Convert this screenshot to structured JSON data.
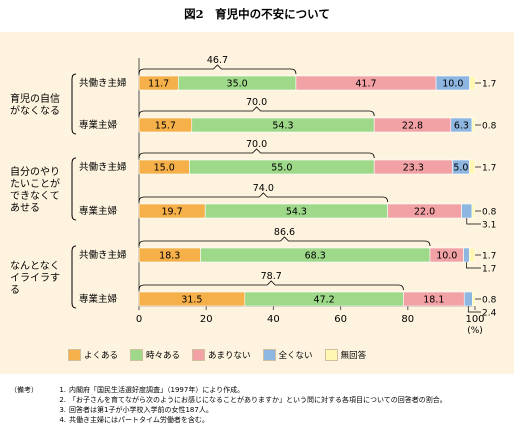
{
  "title": "図2　育児中の不安について",
  "chart_data": {
    "type": "bar",
    "orientation": "horizontal",
    "stacked": true,
    "xlim": [
      0,
      100
    ],
    "x_ticks": [
      0,
      20,
      40,
      60,
      80,
      100
    ],
    "x_unit": "(%)",
    "series_names": [
      "よくある",
      "時々ある",
      "あまりない",
      "全くない",
      "無回答"
    ],
    "series_colors": [
      "#f6b04a",
      "#9ed98a",
      "#f2a1a4",
      "#8db6e0",
      "#fff7b2"
    ],
    "groups": [
      {
        "label_lines": [
          "育児の自信",
          "がなくなる"
        ],
        "rows": [
          {
            "label": "共働き主婦",
            "values": [
              11.7,
              35.0,
              41.7,
              10.0,
              1.7
            ],
            "labels": [
              "11.7",
              "35.0",
              "41.7",
              "10.0",
              "1.7"
            ],
            "bracket_value": "46.7",
            "bracket_end": 46.7
          },
          {
            "label": "専業主婦",
            "values": [
              15.7,
              54.3,
              22.8,
              6.3,
              0.8
            ],
            "labels": [
              "15.7",
              "54.3",
              "22.8",
              "6.3",
              "0.8"
            ],
            "bracket_value": "70.0",
            "bracket_end": 70.0
          }
        ]
      },
      {
        "label_lines": [
          "自分のやり",
          "たいことが",
          "できなくて",
          "あせる"
        ],
        "rows": [
          {
            "label": "共働き主婦",
            "values": [
              15.0,
              55.0,
              23.3,
              5.0,
              1.7
            ],
            "labels": [
              "15.0",
              "55.0",
              "23.3",
              "5.0",
              "1.7"
            ],
            "bracket_value": "70.0",
            "bracket_end": 70.0
          },
          {
            "label": "専業主婦",
            "values": [
              19.7,
              54.3,
              22.0,
              3.1,
              0.8
            ],
            "labels": [
              "19.7",
              "54.3",
              "22.0",
              "3.1",
              "0.8"
            ],
            "bracket_value": "74.0",
            "bracket_end": 74.0
          }
        ]
      },
      {
        "label_lines": [
          "なんとなく",
          "イライラす",
          "る"
        ],
        "rows": [
          {
            "label": "共働き主婦",
            "values": [
              18.3,
              68.3,
              10.0,
              1.7,
              1.7
            ],
            "labels": [
              "18.3",
              "68.3",
              "10.0",
              "1.7",
              "1.7"
            ],
            "bracket_value": "86.6",
            "bracket_end": 86.6
          },
          {
            "label": "専業主婦",
            "values": [
              31.5,
              47.2,
              18.1,
              2.4,
              0.8
            ],
            "labels": [
              "31.5",
              "47.2",
              "18.1",
              "2.4",
              "0.8"
            ],
            "bracket_value": "78.7",
            "bracket_end": 78.7
          }
        ]
      }
    ]
  },
  "notes": {
    "head": "（備考）",
    "items": [
      {
        "num": "1.",
        "text": "内閣府「国民生活選好度調査」（1997年）により作成。"
      },
      {
        "num": "2.",
        "text": "「お子さんを育てながら次のようにお感じになることがありますか」という問に対する各項目についての回答者の割合。"
      },
      {
        "num": "3.",
        "text": "回答者は第1子が小学校入学前の女性187人。"
      },
      {
        "num": "4.",
        "text": "共働き主婦にはパートタイム労働者を含む。"
      }
    ]
  }
}
